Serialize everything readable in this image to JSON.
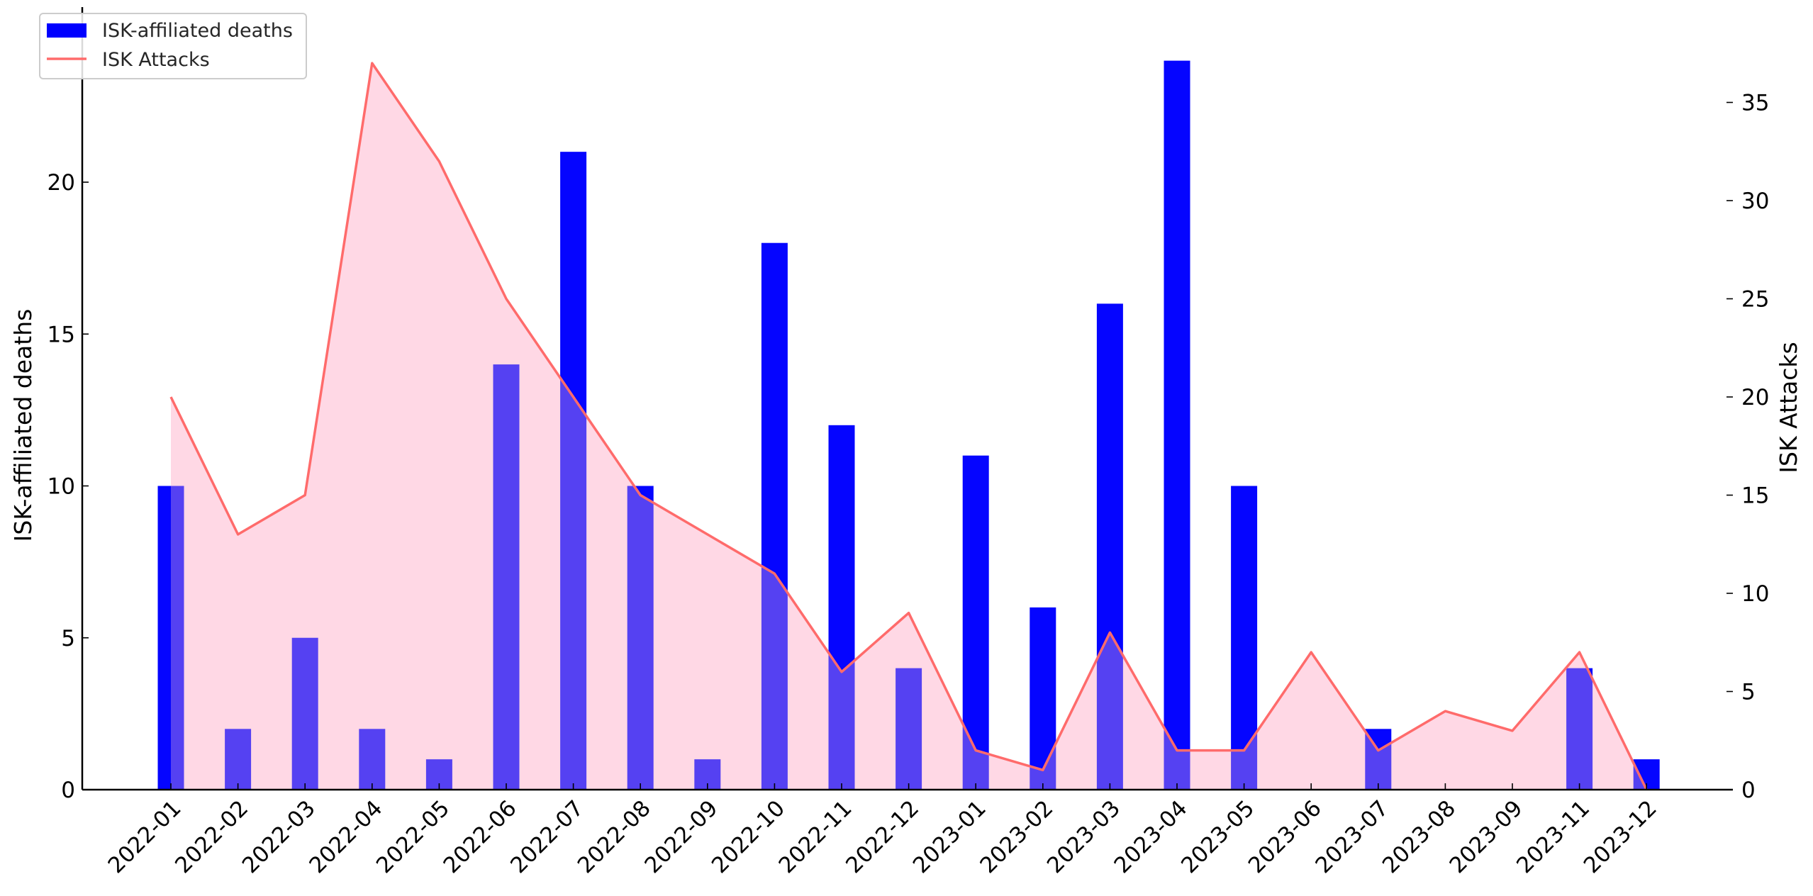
{
  "chart_data": {
    "type": "bar",
    "categories": [
      "2022-01",
      "2022-02",
      "2022-03",
      "2022-04",
      "2022-05",
      "2022-06",
      "2022-07",
      "2022-08",
      "2022-09",
      "2022-10",
      "2022-11",
      "2022-12",
      "2023-01",
      "2023-02",
      "2023-03",
      "2023-04",
      "2023-05",
      "2023-06",
      "2023-07",
      "2023-08",
      "2023-09",
      "2023-11",
      "2023-12"
    ],
    "series": [
      {
        "name": "ISK-affiliated deaths",
        "type": "bar",
        "axis": "left",
        "color": "#0000ff",
        "values": [
          10,
          2,
          5,
          2,
          1,
          14,
          21,
          10,
          1,
          18,
          12,
          4,
          11,
          6,
          16,
          24,
          10,
          0,
          2,
          0,
          0,
          4,
          1
        ]
      },
      {
        "name": "ISK Attacks",
        "type": "line",
        "axis": "right",
        "color": "#ff6b6b",
        "fill": "#ffe4ec",
        "values": [
          20,
          13,
          15,
          37,
          32,
          25,
          20,
          15,
          13,
          11,
          6,
          9,
          2,
          1,
          8,
          2,
          2,
          7,
          2,
          4,
          3,
          7,
          0
        ]
      }
    ],
    "ylabel": "ISK-affiliated deaths",
    "y2label": "ISK Attacks",
    "ylim": [
      0,
      25
    ],
    "y2lim": [
      0,
      38
    ],
    "yticks": [
      0,
      5,
      10,
      15,
      20
    ],
    "y2ticks": [
      0,
      5,
      10,
      15,
      20,
      25,
      30,
      35
    ],
    "legend": "top-left",
    "grid": false
  }
}
